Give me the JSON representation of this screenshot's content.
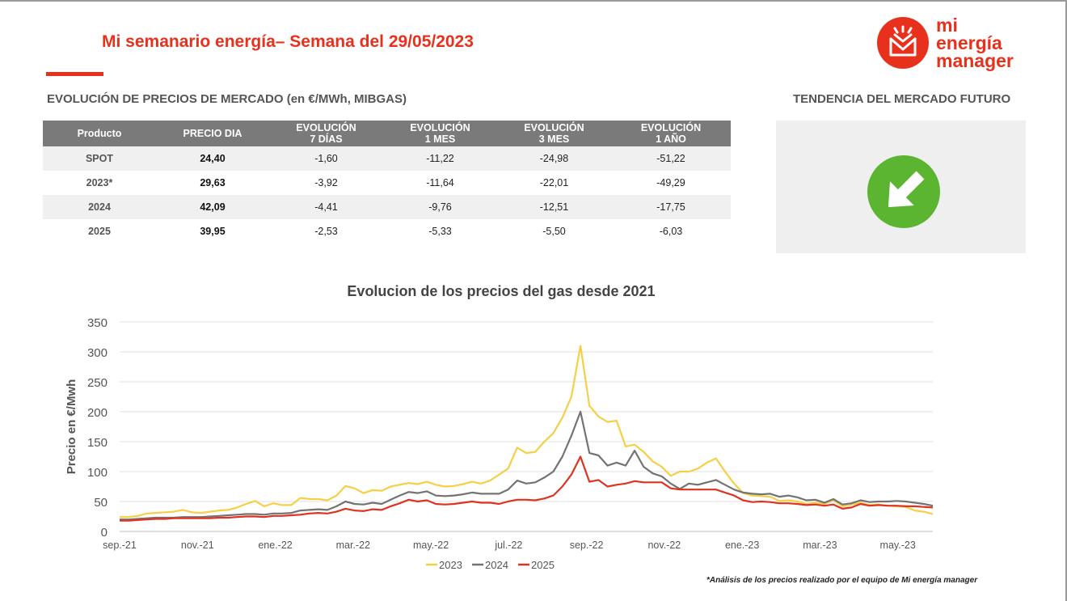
{
  "header": {
    "title": "Mi semanario energía– Semana del 29/05/2023",
    "logo_lines": [
      "mi",
      "energía",
      "manager"
    ]
  },
  "market_table": {
    "section_title": "EVOLUCIÓN DE PRECIOS DE MERCADO (en €/MWh, MIBGAS)",
    "columns": [
      "Producto",
      "PRECIO DIA",
      "EVOLUCIÓN\n7 DÍAS",
      "EVOLUCIÓN\n1 MES",
      "EVOLUCIÓN\n3 MES",
      "EVOLUCIÓN\n1 AÑO"
    ],
    "rows": [
      {
        "product": "SPOT",
        "price": "24,40",
        "d7": "-1,60",
        "m1": "-11,22",
        "m3": "-24,98",
        "y1": "-51,22"
      },
      {
        "product": "2023*",
        "price": "29,63",
        "d7": "-3,92",
        "m1": "-11,64",
        "m3": "-22,01",
        "y1": "-49,29"
      },
      {
        "product": "2024",
        "price": "42,09",
        "d7": "-4,41",
        "m1": "-9,76",
        "m3": "-12,51",
        "y1": "-17,75"
      },
      {
        "product": "2025",
        "price": "39,95",
        "d7": "-2,53",
        "m1": "-5,33",
        "m3": "-5,50",
        "y1": "-6,03"
      }
    ]
  },
  "trend": {
    "section_title": "TENDENCIA DEL MERCADO FUTURO",
    "direction": "down",
    "icon": "arrow-down-right-icon",
    "color": "#5cb531"
  },
  "footnote": "*Análisis de los precios realizado por el equipo de Mi energía manager",
  "colors": {
    "accent": "#e8311d",
    "header_gray": "#7a7a7a",
    "series_2023": "#f5cf45",
    "series_2024": "#737373",
    "series_2025": "#e03220"
  },
  "chart_data": {
    "type": "line",
    "title": "Evolucion de los precios del gas desde 2021",
    "ylabel": "Precio en €/Mwh",
    "xlabel": "",
    "ylim": [
      0,
      350
    ],
    "yticks": [
      0,
      50,
      100,
      150,
      200,
      250,
      300,
      350
    ],
    "xtick_labels": [
      "sep.-21",
      "nov.-21",
      "ene.-22",
      "mar.-22",
      "may.-22",
      "jul.-22",
      "sep.-22",
      "nov.-22",
      "ene.-23",
      "mar.-23",
      "may.-23"
    ],
    "x_period": "weekly",
    "grid": true,
    "legend_position": "bottom",
    "series": [
      {
        "name": "2023",
        "color": "#f5cf45",
        "values": [
          24,
          24,
          26,
          30,
          31,
          32,
          33,
          36,
          32,
          31,
          33,
          35,
          36,
          40,
          46,
          51,
          42,
          47,
          44,
          44,
          56,
          54,
          54,
          52,
          60,
          76,
          72,
          64,
          69,
          68,
          75,
          78,
          81,
          79,
          83,
          78,
          75,
          76,
          79,
          83,
          80,
          85,
          95,
          105,
          140,
          131,
          133,
          150,
          164,
          190,
          225,
          310,
          210,
          192,
          183,
          185,
          142,
          145,
          133,
          117,
          108,
          93,
          100,
          100,
          105,
          115,
          122,
          100,
          80,
          64,
          60,
          59,
          58,
          51,
          52,
          50,
          46,
          48,
          46,
          52,
          42,
          45,
          48,
          44,
          45,
          43,
          42,
          41,
          35,
          33,
          29
        ]
      },
      {
        "name": "2024",
        "color": "#737373",
        "values": [
          20,
          20,
          21,
          22,
          23,
          23,
          23,
          24,
          24,
          24,
          25,
          26,
          27,
          28,
          29,
          29,
          28,
          30,
          30,
          31,
          35,
          36,
          37,
          36,
          42,
          50,
          46,
          45,
          48,
          46,
          53,
          60,
          66,
          64,
          67,
          60,
          59,
          60,
          62,
          65,
          63,
          63,
          63,
          70,
          85,
          80,
          82,
          90,
          100,
          125,
          160,
          200,
          131,
          127,
          110,
          115,
          110,
          135,
          108,
          97,
          92,
          80,
          71,
          80,
          78,
          82,
          86,
          78,
          70,
          65,
          63,
          62,
          63,
          58,
          60,
          57,
          52,
          53,
          48,
          54,
          45,
          47,
          52,
          49,
          50,
          50,
          51,
          50,
          48,
          46,
          43
        ]
      },
      {
        "name": "2025",
        "color": "#e03220",
        "values": [
          18,
          18,
          19,
          20,
          21,
          21,
          22,
          22,
          22,
          22,
          22,
          23,
          23,
          24,
          25,
          25,
          24,
          26,
          26,
          27,
          28,
          30,
          31,
          30,
          33,
          38,
          35,
          34,
          37,
          36,
          42,
          47,
          53,
          50,
          52,
          46,
          45,
          46,
          48,
          50,
          48,
          48,
          46,
          50,
          53,
          53,
          52,
          55,
          60,
          75,
          95,
          125,
          83,
          86,
          75,
          78,
          80,
          84,
          82,
          82,
          82,
          72,
          70,
          70,
          70,
          70,
          70,
          65,
          60,
          52,
          49,
          50,
          49,
          47,
          47,
          46,
          44,
          45,
          43,
          45,
          38,
          40,
          46,
          43,
          44,
          43,
          43,
          42,
          42,
          41,
          40
        ]
      }
    ]
  }
}
